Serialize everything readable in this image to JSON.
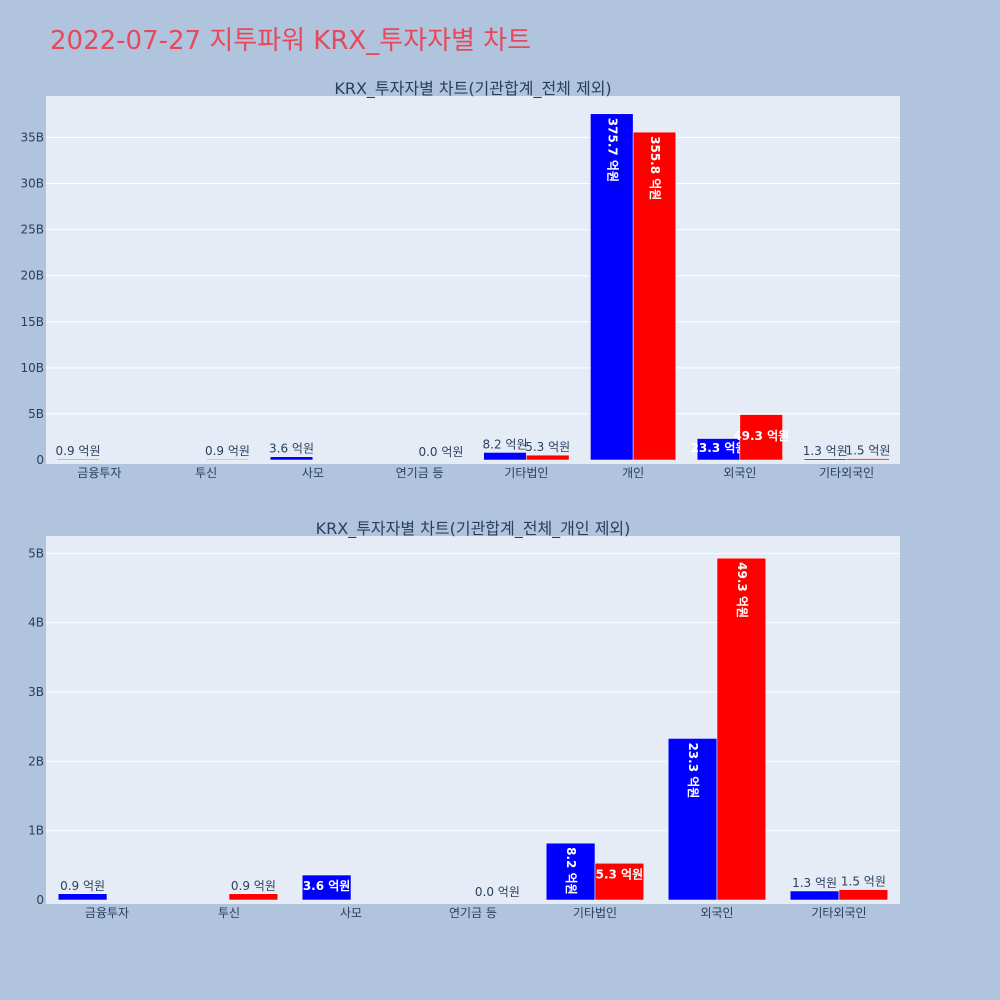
{
  "page_title": "2022-07-27 지투파워 KRX_투자자별 차트",
  "colors": {
    "background": "#b0c4de",
    "plot_background": "#e5ecf6",
    "title": "#e8485a",
    "buy": "#0000ff",
    "sell": "#ff0000",
    "text": "#2a3f5f"
  },
  "chart_data": [
    {
      "type": "bar",
      "title": "KRX_투자자별 차트(기관합계_전체 제외)",
      "categories": [
        "금융투자",
        "투신",
        "사모",
        "연기금 등",
        "기타법인",
        "개인",
        "외국인",
        "기타외국인"
      ],
      "series": [
        {
          "color": "#0000ff",
          "values": [
            0.09,
            0,
            0.36,
            0,
            0.82,
            37.57,
            2.33,
            0.13
          ],
          "labels": [
            "0.9 억원",
            "",
            "3.6 억원",
            "",
            "8.2 억원",
            "375.7 억원",
            "23.3 억원",
            "1.3 억원"
          ]
        },
        {
          "color": "#ff0000",
          "values": [
            0,
            0.09,
            0,
            0.0,
            0.53,
            35.58,
            4.93,
            0.15
          ],
          "labels": [
            "",
            "0.9 억원",
            "",
            "0.0 억원",
            "5.3 억원",
            "355.8 억원",
            "49.3 억원",
            "1.5 억원"
          ]
        }
      ],
      "yticks": [
        0,
        5,
        10,
        15,
        20,
        25,
        30,
        35
      ],
      "ytick_labels": [
        "0",
        "5B",
        "10B",
        "15B",
        "20B",
        "25B",
        "30B",
        "35B"
      ],
      "ylim": [
        0,
        39.5
      ],
      "grid": true
    },
    {
      "type": "bar",
      "title": "KRX_투자자별 차트(기관합계_전체_개인 제외)",
      "categories": [
        "금융투자",
        "투신",
        "사모",
        "연기금 등",
        "기타법인",
        "외국인",
        "기타외국인"
      ],
      "series": [
        {
          "color": "#0000ff",
          "values": [
            0.09,
            0,
            0.36,
            0,
            0.82,
            2.33,
            0.13
          ],
          "labels": [
            "0.9 억원",
            "",
            "3.6 억원",
            "",
            "8.2 억원",
            "23.3 억원",
            "1.3 억원"
          ]
        },
        {
          "color": "#ff0000",
          "values": [
            0,
            0.09,
            0,
            0.0,
            0.53,
            4.93,
            0.15
          ],
          "labels": [
            "",
            "0.9 억원",
            "",
            "0.0 억원",
            "5.3 억원",
            "49.3 억원",
            "1.5 억원"
          ]
        }
      ],
      "yticks": [
        0,
        1,
        2,
        3,
        4,
        5
      ],
      "ytick_labels": [
        "0",
        "1B",
        "2B",
        "3B",
        "4B",
        "5B"
      ],
      "ylim": [
        0,
        5.25
      ],
      "grid": true
    }
  ]
}
